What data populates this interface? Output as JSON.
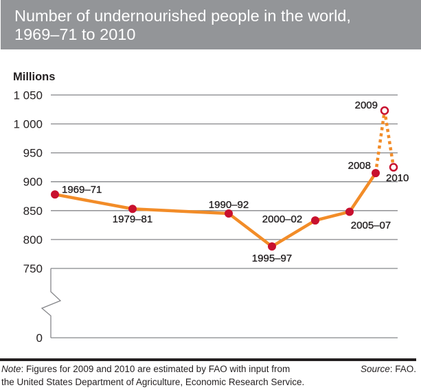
{
  "header": {
    "title_line1": "Number of undernourished people in the world,",
    "title_line2": "1969–71 to 2010"
  },
  "chart_data": {
    "type": "line",
    "title": "Number of undernourished people in the world, 1969–71 to 2010",
    "xlabel": "",
    "ylabel": "Millions",
    "ylim": [
      0,
      1050
    ],
    "axis_break": [
      0,
      750
    ],
    "yticks": [
      0,
      750,
      800,
      850,
      900,
      950,
      1000,
      1050
    ],
    "ytick_labels": [
      "0",
      "750",
      "800",
      "850",
      "900",
      "950",
      "1 000",
      "1 050"
    ],
    "grid": true,
    "legend": "none",
    "categories": [
      "1969–71",
      "1979–81",
      "1990–92",
      "1995–97",
      "2000–02",
      "2005–07",
      "2008",
      "2009",
      "2010"
    ],
    "series": [
      {
        "name": "Undernourished people (millions)",
        "values": [
          878,
          853,
          845,
          788,
          833,
          848,
          915,
          1023,
          925
        ],
        "estimated": [
          false,
          false,
          false,
          false,
          false,
          false,
          false,
          true,
          true
        ]
      }
    ],
    "colors": {
      "line": "#f28c28",
      "point": "#c8102e",
      "grid": "#85868a",
      "text": "#231f20"
    }
  },
  "footer": {
    "note_label": "Note",
    "note_line1": ": Figures for 2009 and 2010 are estimated by FAO with input from",
    "note_line2": "the United States Department of Agriculture, Economic Research Service.",
    "source_label": "Source",
    "source_text": ": FAO."
  }
}
